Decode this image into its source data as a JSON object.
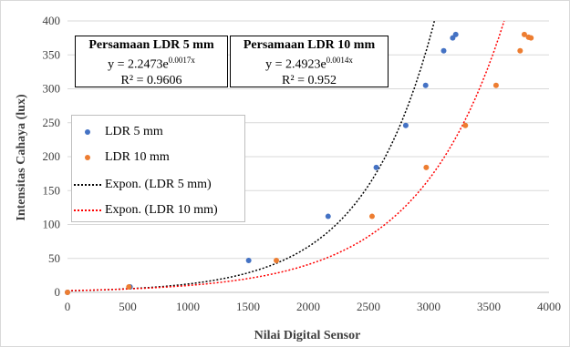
{
  "chart_data": {
    "type": "scatter",
    "xlabel": "Nilai Digital Sensor",
    "ylabel": "Intensitas Cahaya (lux)",
    "xlim": [
      0,
      4000
    ],
    "ylim": [
      0,
      400
    ],
    "xticks": [
      0,
      500,
      1000,
      1500,
      2000,
      2500,
      3000,
      3500,
      4000
    ],
    "yticks": [
      0,
      50,
      100,
      150,
      200,
      250,
      300,
      350,
      400
    ],
    "grid": "horizontal",
    "legend_position": "left",
    "series": [
      {
        "name": "LDR 5 mm",
        "kind": "points",
        "color": "#4472c4",
        "points": [
          [
            0,
            0
          ],
          [
            520,
            8
          ],
          [
            1505,
            47
          ],
          [
            2165,
            112
          ],
          [
            2565,
            184
          ],
          [
            2810,
            246
          ],
          [
            2975,
            305
          ],
          [
            3125,
            356
          ],
          [
            3200,
            375
          ],
          [
            3225,
            380
          ]
        ]
      },
      {
        "name": "LDR 10 mm",
        "kind": "points",
        "color": "#ed7d31",
        "points": [
          [
            0,
            0
          ],
          [
            510,
            8
          ],
          [
            1735,
            47
          ],
          [
            2530,
            112
          ],
          [
            2980,
            184
          ],
          [
            3305,
            246
          ],
          [
            3560,
            305
          ],
          [
            3760,
            356
          ],
          [
            3795,
            380
          ],
          [
            3830,
            376
          ],
          [
            3850,
            375
          ]
        ]
      },
      {
        "name": "Expon. (LDR 5 mm)",
        "kind": "trendline",
        "color": "#000000",
        "a": 2.2473,
        "b": 0.0017
      },
      {
        "name": "Expon. (LDR 10 mm)",
        "kind": "trendline",
        "color": "#ff0000",
        "a": 2.4923,
        "b": 0.0014
      }
    ],
    "annotations": [
      {
        "title": "Persamaan  LDR 5 mm",
        "equation_prefix": "y = 2.2473e",
        "equation_exp": "0.0017x",
        "r2": "R² = 0.9606"
      },
      {
        "title": "Persamaan  LDR 10 mm",
        "equation_prefix": "y = 2.4923e",
        "equation_exp": "0.0014x",
        "r2": "R² = 0.952"
      }
    ]
  }
}
